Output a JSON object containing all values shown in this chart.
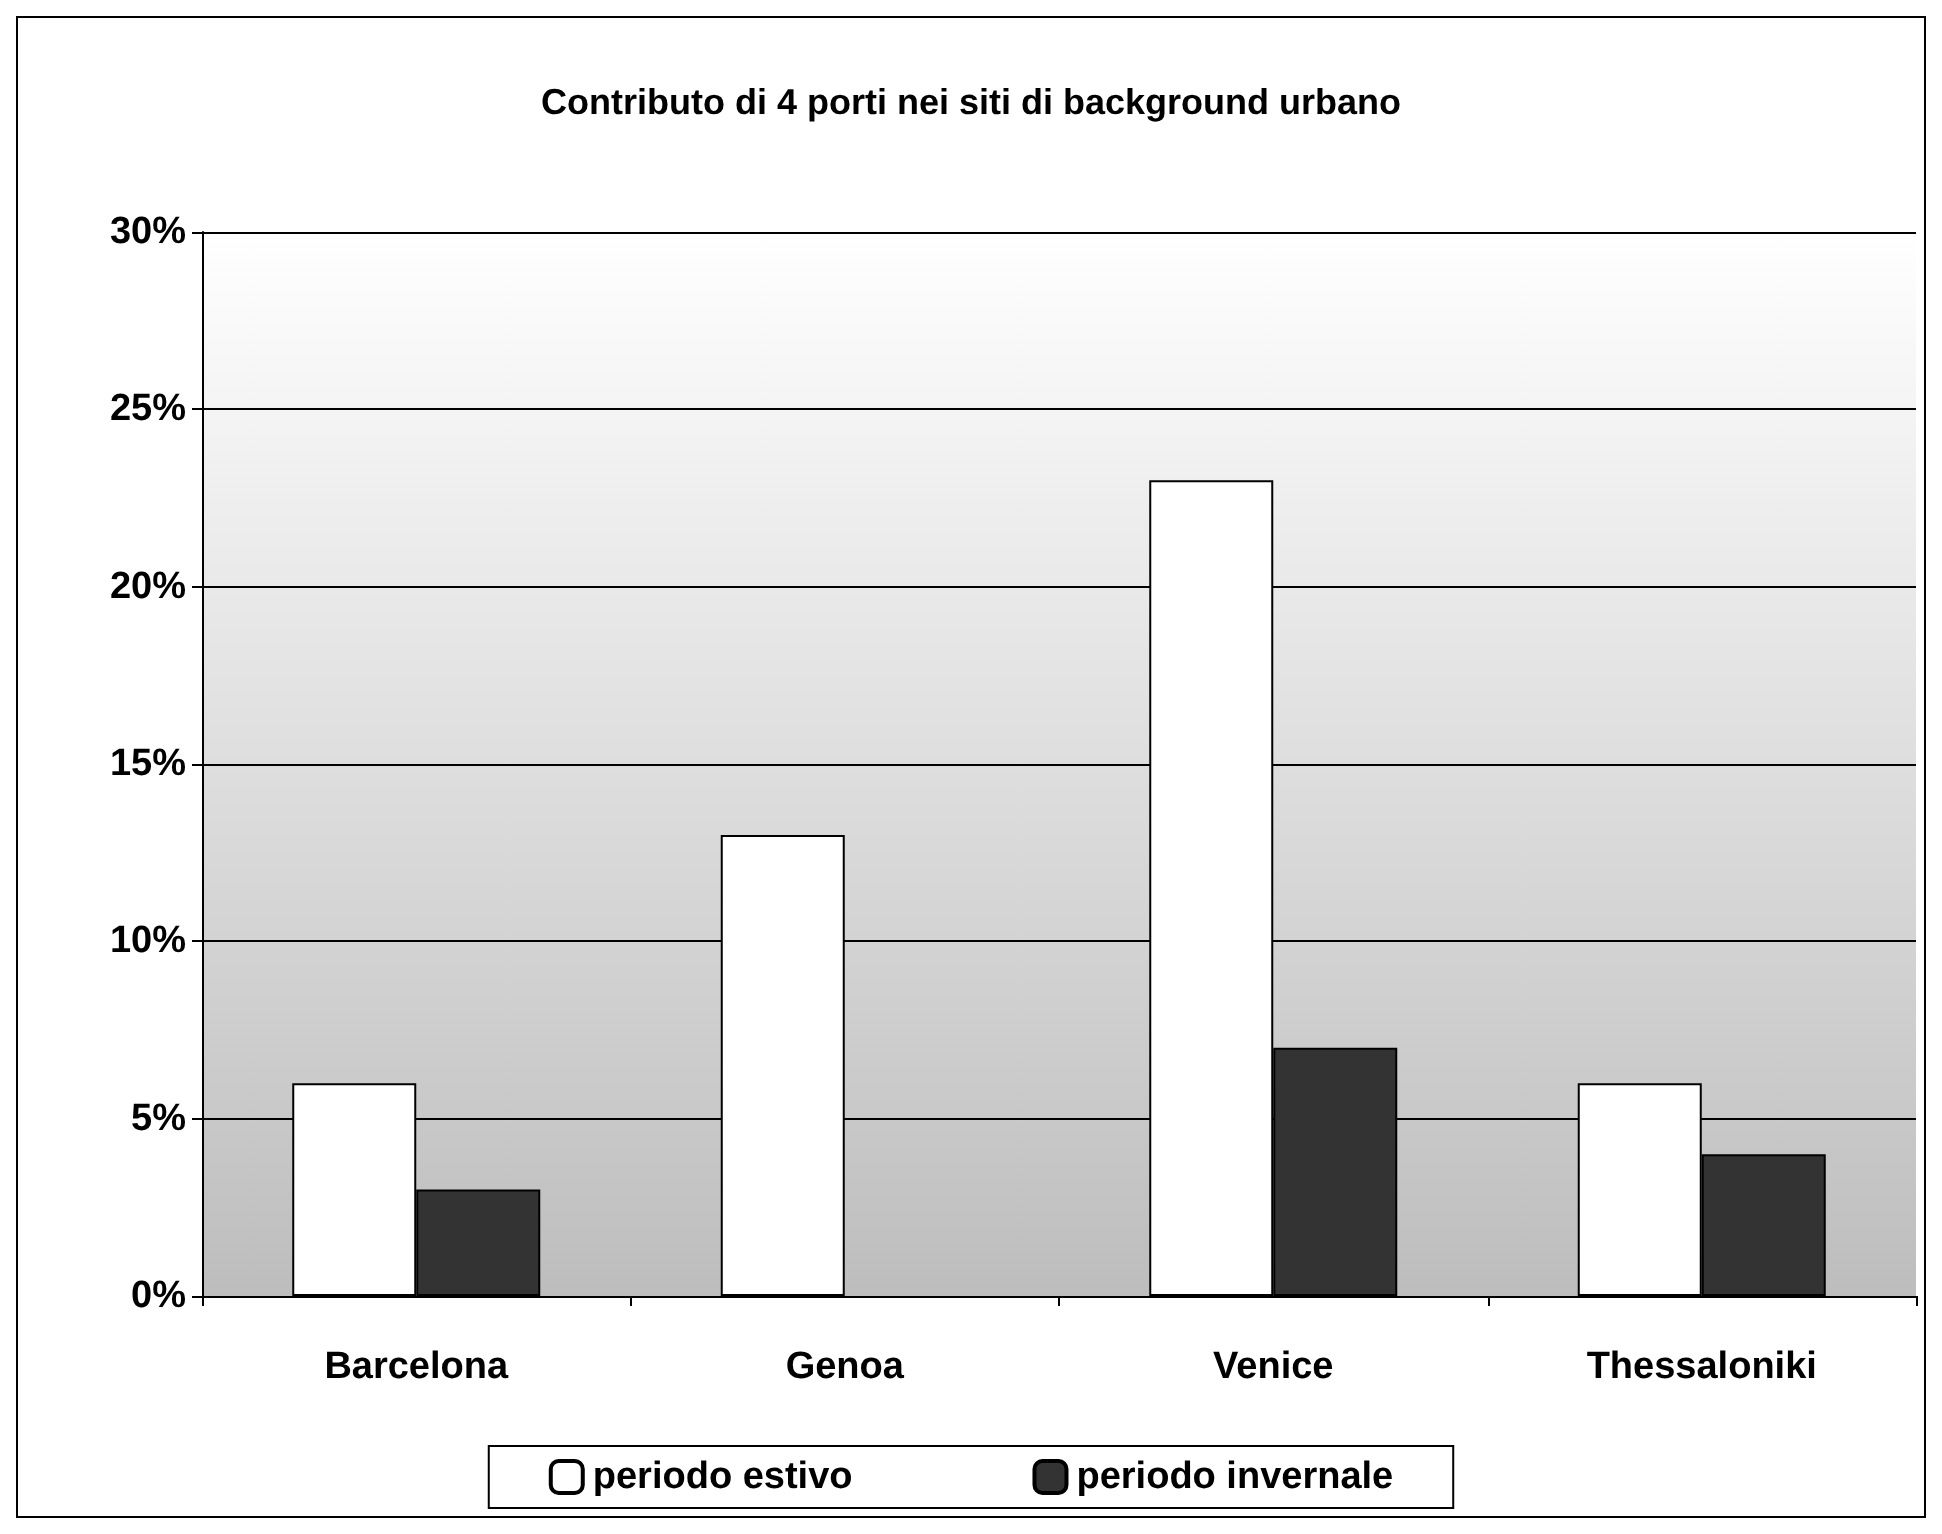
{
  "chart_data": {
    "type": "bar",
    "title": "Contributo di 4 porti nei siti di background urbano",
    "categories": [
      "Barcelona",
      "Genoa",
      "Venice",
      "Thessaloniki"
    ],
    "series": [
      {
        "name": "periodo estivo",
        "color": "#ffffff",
        "values": [
          6,
          13,
          23,
          6
        ]
      },
      {
        "name": "periodo invernale",
        "color": "#333333",
        "values": [
          3,
          null,
          7,
          4
        ]
      }
    ],
    "ylim": [
      0,
      30
    ],
    "yticks": [
      {
        "value": 0,
        "label": "0%"
      },
      {
        "value": 5,
        "label": "5%"
      },
      {
        "value": 10,
        "label": "10%"
      },
      {
        "value": 15,
        "label": "15%"
      },
      {
        "value": 20,
        "label": "20%"
      },
      {
        "value": 25,
        "label": "25%"
      },
      {
        "value": 30,
        "label": "30%"
      }
    ],
    "grid": "y",
    "legend": "bottom"
  }
}
